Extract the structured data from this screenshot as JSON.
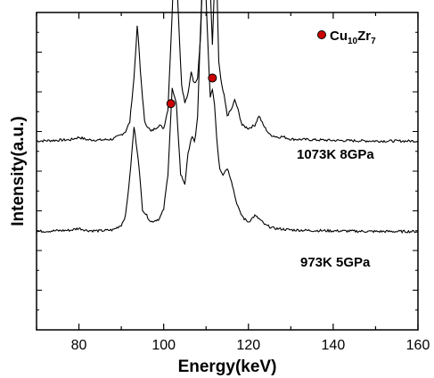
{
  "chart_data": {
    "type": "line",
    "xlabel": "Energy(keV)",
    "ylabel": "Intensity(a.u.)",
    "xlim": [
      70,
      160
    ],
    "x_ticks": [
      "80",
      "100",
      "120",
      "140",
      "160"
    ],
    "y_ticks": [],
    "grid": false,
    "legend": {
      "position": "top-right",
      "marker_color": "#cc0000",
      "label_main": "Cu",
      "sub1": "10",
      "label_mid": "Zr",
      "sub2": "7"
    },
    "series": [
      {
        "name": "1073K  8GPa",
        "baseline": 0.595,
        "x": [
          70,
          74,
          78,
          80,
          82,
          85,
          88,
          90,
          91,
          92,
          93,
          93.8,
          94.5,
          95.5,
          97,
          99,
          100,
          101,
          102,
          102.6,
          103.3,
          104.2,
          105,
          105.8,
          106.5,
          107.2,
          108,
          108.8,
          109.5,
          110,
          110.5,
          111,
          111.5,
          112,
          112.5,
          113,
          113.6,
          114.3,
          115,
          116,
          116.8,
          117.5,
          118.5,
          120,
          121.5,
          122.5,
          123.5,
          125,
          127,
          128,
          130,
          135,
          140,
          145,
          150,
          155,
          160
        ],
        "y": [
          0,
          0.002,
          0.004,
          0.012,
          0.004,
          0.003,
          0.006,
          0.02,
          0.03,
          0.06,
          0.2,
          0.37,
          0.22,
          0.06,
          0.03,
          0.05,
          0.04,
          0.1,
          0.4,
          0.63,
          0.45,
          0.18,
          0.12,
          0.15,
          0.22,
          0.18,
          0.2,
          0.35,
          0.72,
          0.85,
          0.75,
          0.48,
          0.3,
          0.5,
          0.52,
          0.25,
          0.18,
          0.14,
          0.08,
          0.1,
          0.13,
          0.1,
          0.05,
          0.04,
          0.05,
          0.08,
          0.05,
          0.02,
          0.012,
          0.014,
          0.006,
          0.004,
          0.002,
          0.001,
          0,
          0,
          0
        ]
      },
      {
        "name": "973K  5GPa",
        "baseline": 0.31,
        "x": [
          70,
          74,
          78,
          80,
          82,
          85,
          88,
          90,
          91,
          92,
          93,
          94,
          95,
          97,
          99,
          100,
          101,
          102,
          103,
          104,
          105,
          105.8,
          106.6,
          107.3,
          108,
          108.6,
          109.2,
          109.8,
          110.4,
          111,
          111.5,
          112,
          112.6,
          113.2,
          114,
          115,
          116,
          117,
          118,
          119,
          120,
          121.5,
          122.5,
          124,
          126,
          130,
          135,
          140,
          145,
          150,
          155,
          160
        ],
        "y": [
          0,
          0.002,
          0.004,
          0.01,
          0.003,
          0.002,
          0.005,
          0.02,
          0.05,
          0.17,
          0.33,
          0.23,
          0.07,
          0.03,
          0.04,
          0.07,
          0.18,
          0.45,
          0.4,
          0.18,
          0.15,
          0.25,
          0.3,
          0.28,
          0.36,
          0.6,
          0.82,
          0.8,
          0.6,
          0.42,
          0.45,
          0.4,
          0.28,
          0.2,
          0.18,
          0.2,
          0.16,
          0.1,
          0.06,
          0.04,
          0.03,
          0.05,
          0.04,
          0.02,
          0.01,
          0.005,
          0.003,
          0.002,
          0.001,
          0,
          0,
          0
        ]
      }
    ],
    "markers": [
      {
        "series": 0,
        "x": 102.6
      },
      {
        "series": 0,
        "x": 110.0
      },
      {
        "series": 0,
        "x": 112.0
      },
      {
        "series": 1,
        "x": 101.7
      },
      {
        "series": 1,
        "x": 109.4
      },
      {
        "series": 1,
        "x": 111.5
      }
    ]
  }
}
